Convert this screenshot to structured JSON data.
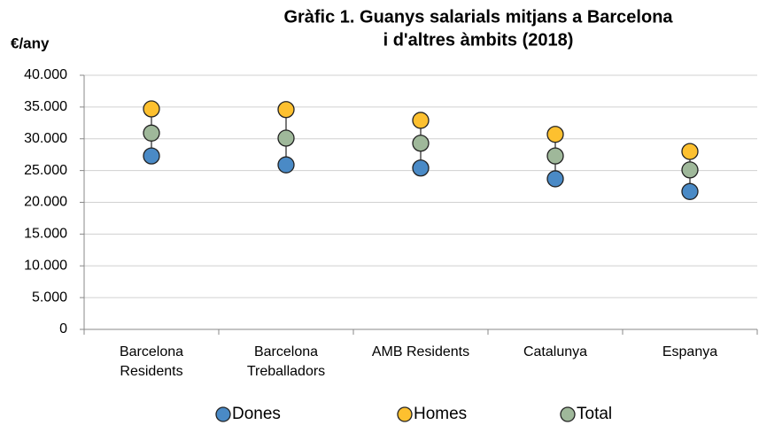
{
  "chart_data": {
    "type": "dot",
    "title": [
      "Gràfic 1. Guanys salarials mitjans a Barcelona",
      "i d'altres àmbits (2018)"
    ],
    "y_label": "€/any",
    "categories": [
      [
        "Barcelona",
        "Residents"
      ],
      [
        "Barcelona",
        "Treballadors"
      ],
      [
        "AMB Residents"
      ],
      [
        "Catalunya"
      ],
      [
        "Espanya"
      ]
    ],
    "series": [
      {
        "name": "Dones",
        "color": "#4a8ac6",
        "values": [
          27300,
          25900,
          25400,
          23700,
          21700
        ]
      },
      {
        "name": "Homes",
        "color": "#fdc02f",
        "values": [
          34700,
          34600,
          32900,
          30700,
          28000
        ]
      },
      {
        "name": "Total",
        "color": "#9fb89a",
        "values": [
          30900,
          30100,
          29300,
          27300,
          25100
        ]
      }
    ],
    "ylim": [
      0,
      40000
    ],
    "yticks": [
      0,
      {
        "value": 5000,
        "label": "5.000"
      },
      {
        "value": 10000,
        "label": "10.000"
      },
      {
        "value": 15000,
        "label": "15.000"
      },
      {
        "value": 20000,
        "label": "20.000"
      },
      {
        "value": 25000,
        "label": "25.000"
      },
      {
        "value": 30000,
        "label": "30.000"
      },
      {
        "value": 35000,
        "label": "35.000"
      },
      {
        "value": 40000,
        "label": "40.000"
      }
    ],
    "grid": true,
    "legend": "bottom"
  }
}
